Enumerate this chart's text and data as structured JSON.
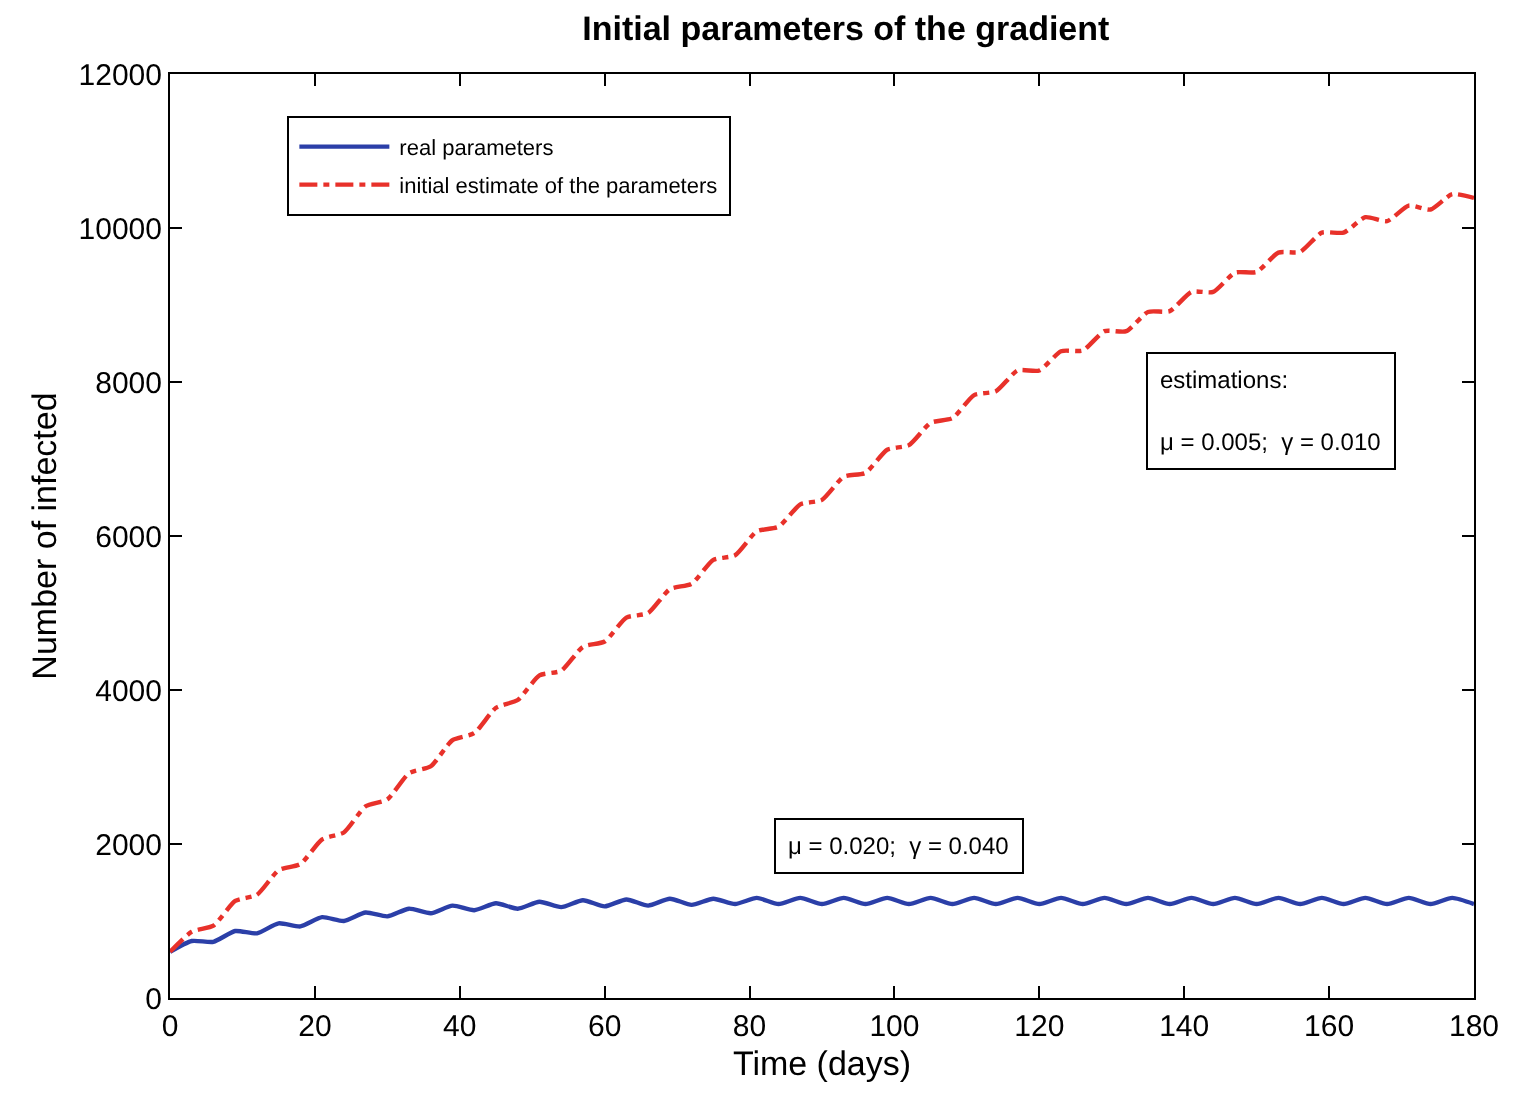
{
  "chart_data": {
    "type": "line",
    "title": "Initial parameters of the gradient",
    "xlabel": "Time (days)",
    "ylabel": "Number of infected",
    "x": [
      0,
      3,
      6,
      9,
      12,
      15,
      18,
      21,
      24,
      27,
      30,
      33,
      36,
      39,
      42,
      45,
      48,
      51,
      54,
      57,
      60,
      63,
      66,
      69,
      72,
      75,
      78,
      81,
      84,
      87,
      90,
      93,
      96,
      99,
      102,
      105,
      108,
      111,
      114,
      117,
      120,
      123,
      126,
      129,
      132,
      135,
      138,
      141,
      144,
      147,
      150,
      153,
      156,
      159,
      162,
      165,
      168,
      171,
      174,
      177,
      180
    ],
    "series": [
      {
        "name": "real parameters",
        "color": "#2b3fa8",
        "line_style": "solid",
        "values": [
          600,
          740,
          730,
          870,
          840,
          970,
          930,
          1050,
          1000,
          1110,
          1060,
          1160,
          1100,
          1200,
          1140,
          1230,
          1160,
          1250,
          1180,
          1270,
          1190,
          1280,
          1200,
          1290,
          1210,
          1290,
          1220,
          1300,
          1220,
          1300,
          1220,
          1300,
          1220,
          1300,
          1220,
          1300,
          1220,
          1300,
          1220,
          1300,
          1220,
          1300,
          1220,
          1300,
          1220,
          1300,
          1220,
          1300,
          1220,
          1300,
          1220,
          1300,
          1220,
          1300,
          1220,
          1300,
          1220,
          1300,
          1220,
          1300,
          1220
        ]
      },
      {
        "name": "initial estimate of the parameters",
        "color": "#e8312a",
        "line_style": "dashed",
        "values": [
          600,
          860,
          940,
          1260,
          1340,
          1660,
          1740,
          2060,
          2150,
          2490,
          2580,
          2920,
          3010,
          3350,
          3440,
          3770,
          3870,
          4190,
          4250,
          4560,
          4630,
          4940,
          5000,
          5310,
          5380,
          5690,
          5750,
          6060,
          6120,
          6410,
          6470,
          6770,
          6820,
          7120,
          7180,
          7470,
          7530,
          7830,
          7880,
          8150,
          8150,
          8400,
          8410,
          8660,
          8660,
          8910,
          8920,
          9170,
          9170,
          9420,
          9430,
          9680,
          9690,
          9940,
          9940,
          10140,
          10090,
          10290,
          10240,
          10440,
          10390
        ]
      }
    ],
    "xlim": [
      0,
      180
    ],
    "xticks": [
      0,
      20,
      40,
      60,
      80,
      100,
      120,
      140,
      160,
      180
    ],
    "ylim": [
      0,
      12000
    ],
    "yticks": [
      0,
      2000,
      4000,
      6000,
      8000,
      10000,
      12000
    ],
    "legend": "top left",
    "annotations": [
      "estimations:\n\nμ = 0.005;  γ = 0.010",
      "μ = 0.020;  γ = 0.040"
    ]
  }
}
